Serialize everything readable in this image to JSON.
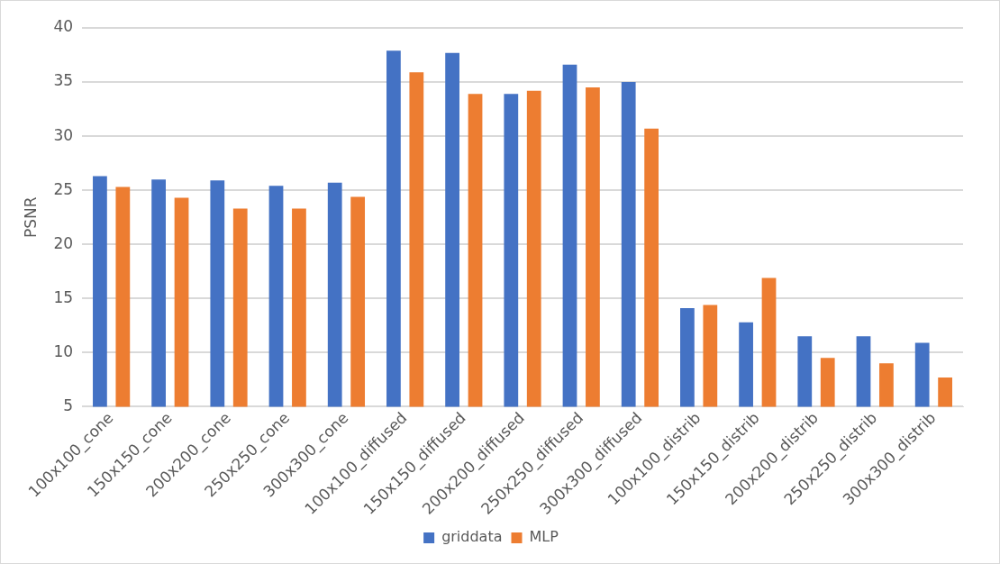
{
  "chart_data": {
    "type": "bar",
    "ylabel": "PSNR",
    "categories": [
      "100x100_cone",
      "150x150_cone",
      "200x200_cone",
      "250x250_cone",
      "300x300_cone",
      "100x100_diffused",
      "150x150_diffused",
      "200x200_diffused",
      "250x250_diffused",
      "300x300_diffused",
      "100x100_distrib",
      "150x150_distrib",
      "200x200_distrib",
      "250x250_distrib",
      "300x300_distrib"
    ],
    "series": [
      {
        "name": "griddata",
        "color": "#4472c4",
        "values": [
          26.3,
          26.0,
          25.9,
          25.4,
          25.7,
          37.9,
          37.7,
          33.9,
          36.6,
          35.0,
          14.1,
          12.8,
          11.5,
          11.5,
          10.9
        ]
      },
      {
        "name": "MLP",
        "color": "#ed7d31",
        "values": [
          25.3,
          24.3,
          23.3,
          23.3,
          24.4,
          35.9,
          33.9,
          34.2,
          34.5,
          30.7,
          14.4,
          16.9,
          9.5,
          9.0,
          7.7
        ]
      }
    ],
    "ylim": [
      5,
      40
    ],
    "yticks": [
      5,
      10,
      15,
      20,
      25,
      30,
      35,
      40
    ],
    "grid": "y",
    "legend": "bottom"
  }
}
